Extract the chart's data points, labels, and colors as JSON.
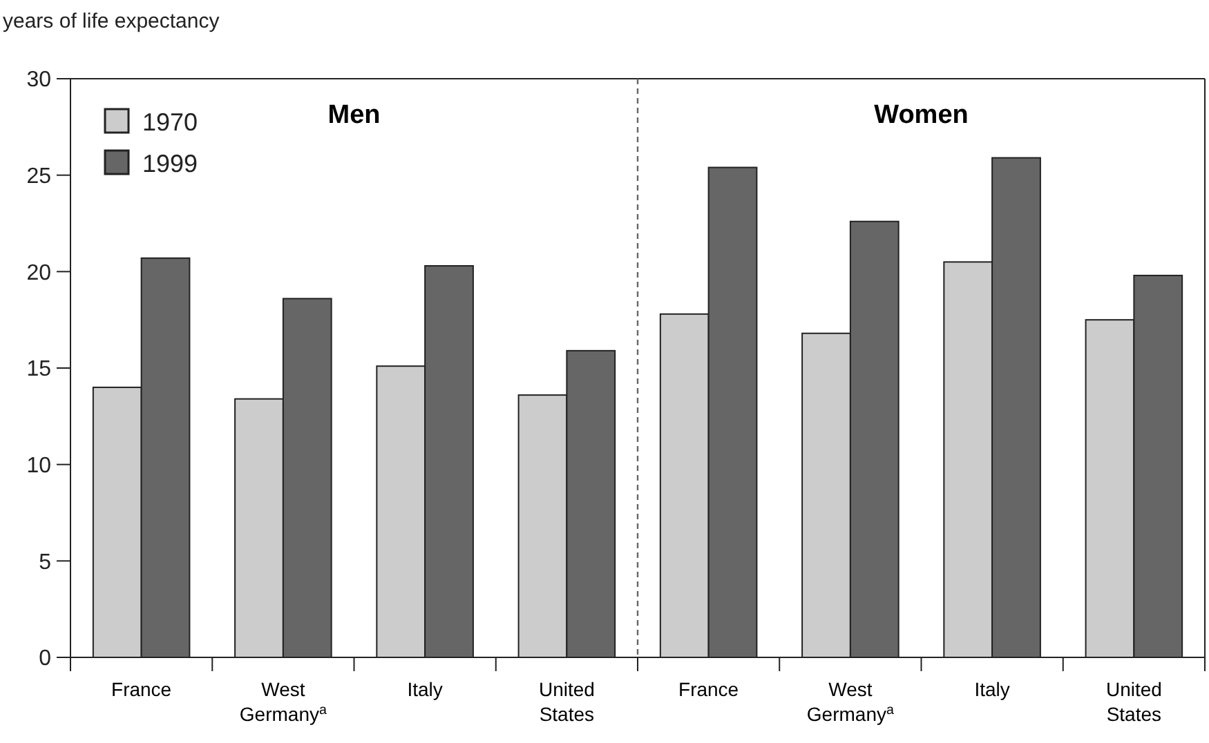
{
  "chart_data": {
    "type": "bar",
    "ylabel": "years of life expectancy",
    "categories": [
      "France",
      "West Germany$^{a}$",
      "Italy",
      "United States",
      "France",
      "West Germany$^{a}$",
      "Italy",
      "United States"
    ],
    "series": [
      {
        "name": "1970",
        "color": "#cccccc",
        "values": [
          14.0,
          13.4,
          15.1,
          13.6,
          17.8,
          16.8,
          20.5,
          17.5
        ]
      },
      {
        "name": "1999",
        "color": "#666666",
        "values": [
          20.7,
          18.6,
          20.3,
          15.9,
          25.4,
          22.6,
          25.9,
          19.8
        ]
      }
    ],
    "ylim": [
      0,
      30
    ],
    "yticks": [
      0,
      5,
      10,
      15,
      20,
      25,
      30
    ],
    "grid": false,
    "legend": "top left",
    "annotations": [
      "Men",
      "Women"
    ]
  }
}
